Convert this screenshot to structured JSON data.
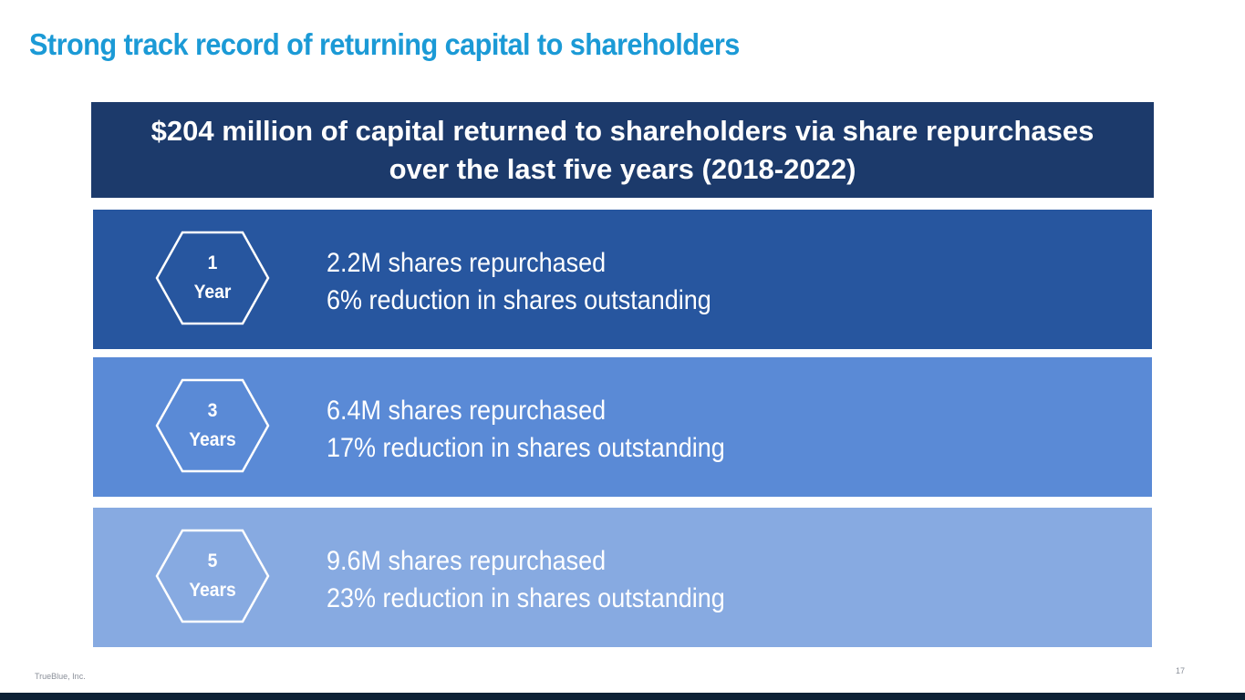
{
  "title": "Strong track record of returning capital to shareholders",
  "banner": {
    "line1": "$204 million of capital returned to shareholders via share repurchases",
    "line2": "over the last five years (2018-2022)"
  },
  "rows": [
    {
      "badge_number": "1",
      "badge_unit": "Year",
      "line1": "2.2M shares repurchased",
      "line2": "6% reduction in shares outstanding",
      "color": "#27569F"
    },
    {
      "badge_number": "3",
      "badge_unit": "Years",
      "line1": "6.4M shares repurchased",
      "line2": "17% reduction in shares outstanding",
      "color": "#5A8AD6"
    },
    {
      "badge_number": "5",
      "badge_unit": "Years",
      "line1": "9.6M shares repurchased",
      "line2": "23% reduction in shares outstanding",
      "color": "#87AAE1"
    }
  ],
  "footer": {
    "company": "TrueBlue, Inc.",
    "page_number": "17"
  },
  "colors": {
    "title": "#1B9AD6",
    "banner": "#1C3A6B",
    "bottom_bar": "#0E2236"
  }
}
